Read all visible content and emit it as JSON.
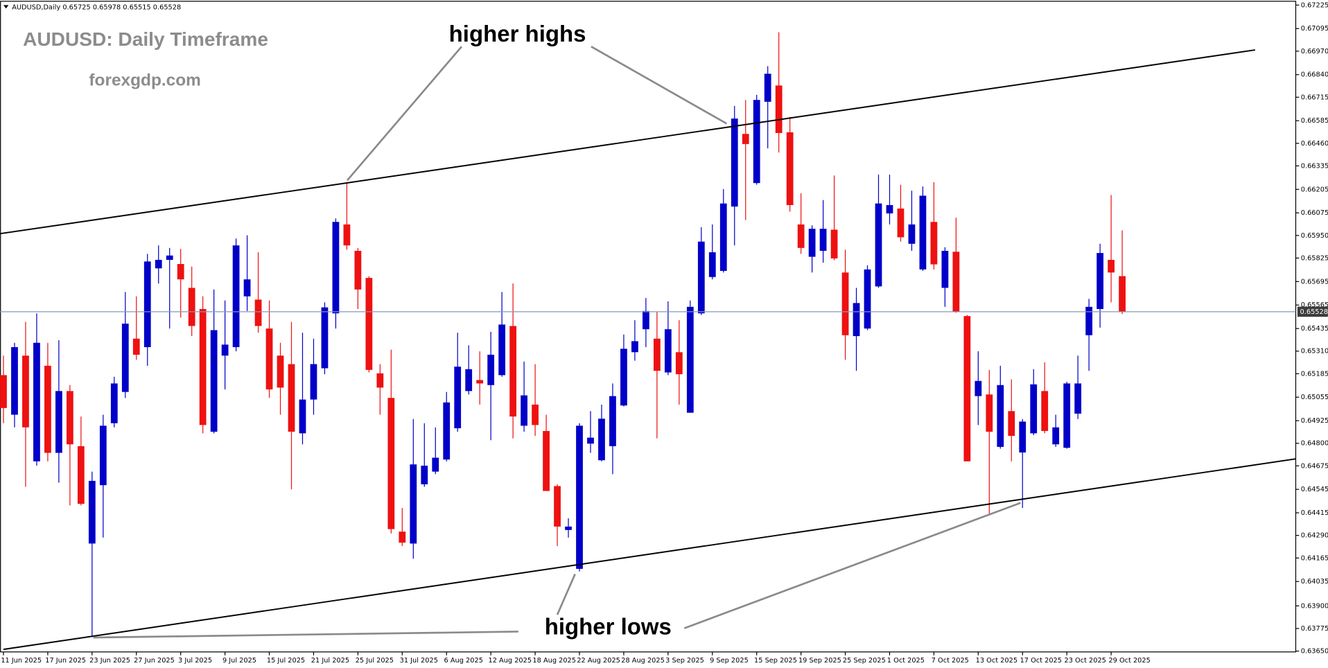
{
  "chart_data": {
    "type": "candlestick",
    "symbol_info": "AUDUSD,Daily  0.65725 0.65978 0.65515 0.65528",
    "title": "AUDUSD: Daily Timeframe",
    "subtitle": "forexgdp.com",
    "annotations": [
      "higher highs",
      "higher lows"
    ],
    "up_color": "#0000c8",
    "down_color": "#ee1111",
    "current_price": 0.65528,
    "current_price_color": "#8797b5",
    "grid": false,
    "ylim": [
      0.6365,
      0.67225
    ],
    "yticks": [
      0.67225,
      0.67095,
      {
        "value": 0.6697,
        "label": "0.66970"
      },
      {
        "value": 0.6684,
        "label": "0.66840"
      },
      0.66715,
      0.66585,
      {
        "value": 0.6646,
        "label": "0.66460"
      },
      0.66335,
      0.66205,
      0.66075,
      {
        "value": 0.6595,
        "label": "0.65950"
      },
      0.65825,
      0.65695,
      0.65565,
      0.65435,
      {
        "value": 0.6531,
        "label": "0.65310"
      },
      0.65185,
      0.65055,
      0.64925,
      {
        "value": 0.648,
        "label": "0.64800"
      },
      0.64675,
      0.64545,
      0.64415,
      {
        "value": 0.6429,
        "label": "0.64290"
      },
      0.64165,
      0.64035,
      {
        "value": 0.639,
        "label": "0.63900"
      },
      0.63775,
      {
        "value": 0.6365,
        "label": "0.63650"
      }
    ],
    "categories": [
      "11 Jun 2025",
      null,
      null,
      null,
      "17 Jun 2025",
      null,
      null,
      null,
      "23 Jun 2025",
      null,
      null,
      null,
      "27 Jun 2025",
      null,
      null,
      null,
      "3 Jul 2025",
      null,
      null,
      null,
      "9 Jul 2025",
      null,
      null,
      null,
      "15 Jul 2025",
      null,
      null,
      null,
      "21 Jul 2025",
      null,
      null,
      null,
      "25 Jul 2025",
      null,
      null,
      null,
      "31 Jul 2025",
      null,
      null,
      null,
      "6 Aug 2025",
      null,
      null,
      null,
      "12 Aug 2025",
      null,
      null,
      null,
      "18 Aug 2025",
      null,
      null,
      null,
      "22 Aug 2025",
      null,
      null,
      null,
      "28 Aug 2025",
      null,
      null,
      null,
      "3 Sep 2025",
      null,
      null,
      null,
      "9 Sep 2025",
      null,
      null,
      null,
      "15 Sep 2025",
      null,
      null,
      null,
      "19 Sep 2025",
      null,
      null,
      null,
      "25 Sep 2025",
      null,
      null,
      null,
      "1 Oct 2025",
      null,
      null,
      null,
      "7 Oct 2025",
      null,
      null,
      null,
      "13 Oct 2025",
      null,
      null,
      null,
      "17 Oct 2025",
      null,
      null,
      null,
      "23 Oct 2025",
      null,
      null,
      null,
      "29 Oct 2025",
      null
    ],
    "open": [
      0.65177,
      0.64958,
      0.65285,
      0.647,
      0.65229,
      0.64747,
      0.65089,
      0.64784,
      0.64245,
      0.64568,
      0.64911,
      0.65084,
      0.65379,
      0.65332,
      0.65768,
      0.65815,
      0.65792,
      0.6566,
      0.65543,
      0.64864,
      0.65285,
      0.65332,
      0.65613,
      0.65595,
      0.65435,
      0.65285,
      0.65238,
      0.64855,
      0.65042,
      0.65215,
      0.65519,
      0.66011,
      0.65865,
      0.65715,
      0.65187,
      0.65051,
      0.64311,
      0.64245,
      0.64573,
      0.64643,
      0.6471,
      0.64883,
      0.65089,
      0.6515,
      0.65122,
      0.65177,
      0.65449,
      0.64897,
      0.65014,
      0.64868,
      0.64563,
      0.6432,
      0.64105,
      0.64798,
      0.64706,
      0.64784,
      0.65009,
      0.65304,
      0.65431,
      0.65379,
      0.65192,
      0.65304,
      0.64969,
      0.65519,
      0.6572,
      0.65754,
      0.6611,
      0.66512,
      0.6624,
      0.6669,
      0.6678,
      0.66521,
      0.66011,
      0.65832,
      0.65865,
      0.65982,
      0.65745,
      0.65393,
      0.65435,
      0.65668,
      0.66072,
      0.66099,
      0.65904,
      0.65762,
      0.66025,
      0.6566,
      0.6586,
      0.65504,
      0.65061,
      0.6507,
      0.6478,
      0.64978,
      0.64749,
      0.64855,
      0.65089,
      0.64794,
      0.64775,
      0.64964,
      0.65398,
      0.65543,
      0.65815,
      0.65725
    ],
    "high": [
      0.65285,
      0.65356,
      0.65472,
      0.65519,
      0.65356,
      0.6537,
      0.65122,
      0.64948,
      0.64643,
      0.64958,
      0.65168,
      0.65637,
      0.65613,
      0.65848,
      0.65895,
      0.65881,
      0.65876,
      0.65778,
      0.65613,
      0.65651,
      0.6559,
      0.65933,
      0.65951,
      0.65857,
      0.6559,
      0.65356,
      0.65472,
      0.65412,
      0.65379,
      0.6558,
      0.66044,
      0.66245,
      0.65881,
      0.65724,
      0.65238,
      0.65318,
      0.64442,
      0.64934,
      0.64911,
      0.64888,
      0.65084,
      0.65412,
      0.65342,
      0.65309,
      0.65417,
      0.65637,
      0.65684,
      0.65252,
      0.65238,
      0.64958,
      0.64573,
      0.64385,
      0.64911,
      0.64978,
      0.65014,
      0.65131,
      0.65402,
      0.65481,
      0.65604,
      0.65527,
      0.65585,
      0.65481,
      0.6559,
      0.65996,
      0.66011,
      0.66207,
      0.66667,
      0.667,
      0.66728,
      0.66887,
      0.67075,
      0.66606,
      0.66184,
      0.66006,
      0.66146,
      0.66282,
      0.65871,
      0.6566,
      0.65785,
      0.66287,
      0.66287,
      0.66231,
      0.66198,
      0.66221,
      0.66245,
      0.65885,
      0.66048,
      0.6551,
      0.65309,
      0.65206,
      0.65229,
      0.65154,
      0.64934,
      0.6521,
      0.65248,
      0.64958,
      0.6514,
      0.65285,
      0.65599,
      0.65904,
      0.66174,
      0.65978
    ],
    "low": [
      0.64911,
      0.64888,
      0.64559,
      0.64676,
      0.647,
      0.64582,
      0.64456,
      0.64456,
      0.6373,
      0.64278,
      0.64888,
      0.65051,
      0.65262,
      0.65229,
      0.65684,
      0.65435,
      0.65496,
      0.65393,
      0.64855,
      0.64855,
      0.65098,
      0.65309,
      0.65532,
      0.65412,
      0.65051,
      0.64958,
      0.64545,
      0.64794,
      0.64958,
      0.65182,
      0.65435,
      0.65871,
      0.65543,
      0.65192,
      0.64958,
      0.64301,
      0.64231,
      0.64161,
      0.64559,
      0.64629,
      0.647,
      0.64864,
      0.6507,
      0.65014,
      0.64817,
      0.65168,
      0.64827,
      0.64864,
      0.64841,
      0.64536,
      0.64231,
      0.64278,
      0.64091,
      0.64747,
      0.647,
      0.64629,
      0.65004,
      0.65257,
      0.65332,
      0.64827,
      0.65177,
      0.65014,
      0.64969,
      0.6551,
      0.65707,
      0.65745,
      0.65895,
      0.66035,
      0.66231,
      0.66432,
      0.66409,
      0.66082,
      0.65848,
      0.65745,
      0.65799,
      0.65813,
      0.65262,
      0.65201,
      0.65426,
      0.6566,
      0.66011,
      0.65916,
      0.65865,
      0.65754,
      0.65762,
      0.65555,
      0.65522,
      0.647,
      0.64901,
      0.64406,
      0.6477,
      0.647,
      0.64442,
      0.64845,
      0.64855,
      0.6478,
      0.6477,
      0.64934,
      0.65201,
      0.6544,
      0.6558,
      0.65515
    ],
    "close": [
      0.64995,
      0.65332,
      0.64888,
      0.65356,
      0.64747,
      0.65089,
      0.64794,
      0.64465,
      0.64592,
      0.64897,
      0.65131,
      0.65462,
      0.6529,
      0.65806,
      0.65815,
      0.65839,
      0.65707,
      0.65449,
      0.64901,
      0.65426,
      0.65346,
      0.65895,
      0.65707,
      0.65449,
      0.65098,
      0.65108,
      0.64864,
      0.65042,
      0.65238,
      0.65552,
      0.66025,
      0.65895,
      0.65651,
      0.65206,
      0.65108,
      0.64325,
      0.6425,
      0.64683,
      0.64676,
      0.6472,
      0.65026,
      0.65224,
      0.6521,
      0.65131,
      0.6529,
      0.65457,
      0.64948,
      0.65065,
      0.64901,
      0.64536,
      0.64339,
      0.64339,
      0.64897,
      0.64831,
      0.64936,
      0.65061,
      0.65323,
      0.65365,
      0.65532,
      0.65201,
      0.65431,
      0.65182,
      0.65555,
      0.65916,
      0.65857,
      0.66127,
      0.66597,
      0.66456,
      0.667,
      0.66845,
      0.66517,
      0.66118,
      0.65881,
      0.65987,
      0.65987,
      0.65823,
      0.65398,
      0.65576,
      0.65762,
      0.66127,
      0.66118,
      0.6594,
      0.66011,
      0.6617,
      0.6579,
      0.65865,
      0.65527,
      0.647,
      0.65145,
      0.64864,
      0.65122,
      0.64841,
      0.6492,
      0.65126,
      0.64868,
      0.64888,
      0.65131,
      0.65131,
      0.65555,
      0.65853,
      0.65745,
      0.65528
    ]
  }
}
